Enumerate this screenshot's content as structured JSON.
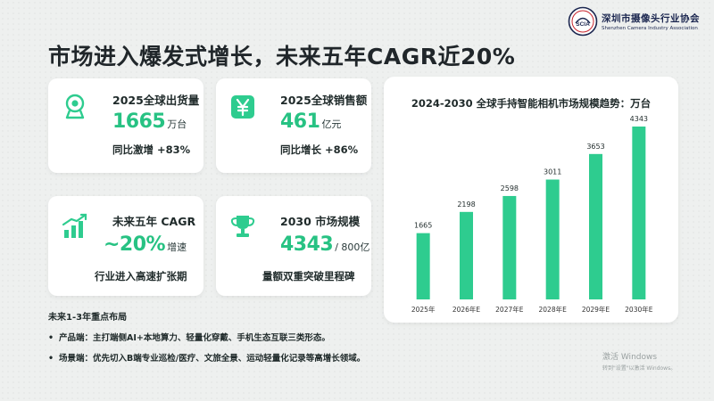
{
  "header": {
    "title": "市场进入爆发式增长，未来五年CAGR近20%",
    "logo_emblem_text": "SCIA",
    "logo_cn": "深圳市摄像头行业协会",
    "logo_en": "Shenzhen Camera Industry Association"
  },
  "cards": [
    {
      "icon": "webcam-icon",
      "label": "2025全球出货量",
      "value": "1665",
      "unit": "万台",
      "sub": "同比激增 +83%"
    },
    {
      "icon": "yen-icon",
      "label": "2025全球销售额",
      "value": "461",
      "unit": "亿元",
      "sub": "同比增长 +86%"
    },
    {
      "icon": "growth-chart-icon",
      "label": "未来五年 CAGR",
      "value": "~20%",
      "unit": "增速",
      "sub": "行业进入高速扩张期"
    },
    {
      "icon": "trophy-icon",
      "label": "2030 市场规模",
      "value": "4343",
      "unit": "/ 800亿",
      "sub": "量额双重突破里程碑"
    }
  ],
  "notes": {
    "title": "未来1-3年重点布局",
    "items": [
      {
        "bullet": "•",
        "text": "产品端：主打端侧AI+本地算力、轻量化穿戴、手机生态互联三类形态。"
      },
      {
        "bullet": "•",
        "text": "场景端：优先切入B端专业巡检/医疗、文旅全景、运动轻量化记录等高增长领域。"
      }
    ]
  },
  "chart_data": {
    "type": "bar",
    "title": "2024-2030 全球手持智能相机市场规模趋势：万台",
    "categories": [
      "2025年",
      "2026年E",
      "2027年E",
      "2028年E",
      "2029年E",
      "2030年E"
    ],
    "values": [
      1665,
      2198,
      2598,
      3011,
      3653,
      4343
    ],
    "ylim": [
      0,
      4343
    ],
    "grid": false,
    "bar_color": "#2ecc8f"
  },
  "watermark": {
    "line1": "激活 Windows",
    "line2": "转到\"设置\"以激活 Windows。"
  }
}
